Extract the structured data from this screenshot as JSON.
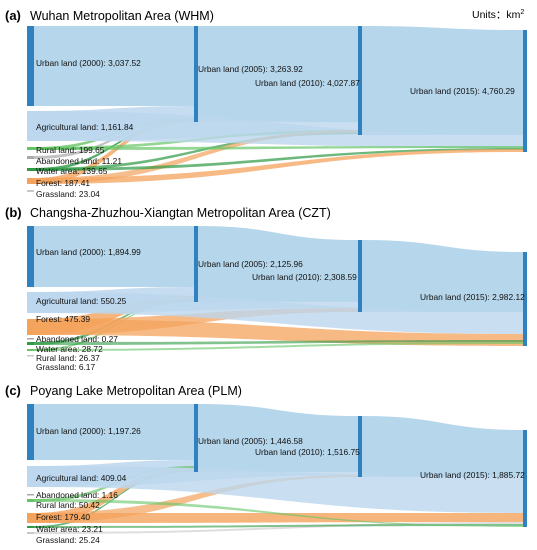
{
  "units": {
    "text": "Units：km",
    "superscript": "2"
  },
  "colors": {
    "urban": "#2f82bf",
    "urban_flow": "#a9cfe8",
    "agricultural": "#bcd7ee",
    "rural": "#66c466",
    "abandoned": "#a8a8a8",
    "water": "#2e9a45",
    "forest": "#f4a35c",
    "grassland": "#c8c8c8"
  },
  "panels": [
    {
      "letter": "(a)",
      "title": "Wuhan Metropolitan Area (WHM)",
      "nodes": [
        {
          "label": "Urban land (2000): 3,037.52",
          "kind": "urban",
          "stage": 0
        },
        {
          "label": "Agricultural land: 1,161.84",
          "kind": "agricultural",
          "stage": 0
        },
        {
          "label": "Rural land: 199.65",
          "kind": "rural",
          "stage": 0
        },
        {
          "label": "Abandoned land: 11.21",
          "kind": "abandoned",
          "stage": 0
        },
        {
          "label": "Water area: 139.65",
          "kind": "water",
          "stage": 0
        },
        {
          "label": "Forest: 187.41",
          "kind": "forest",
          "stage": 0
        },
        {
          "label": "Grassland: 23.04",
          "kind": "grassland",
          "stage": 0
        },
        {
          "label": "Urban land (2005): 3,263.92",
          "kind": "urban",
          "stage": 1
        },
        {
          "label": "Urban land (2010): 4,027.87",
          "kind": "urban",
          "stage": 2
        },
        {
          "label": "Urban land (2015): 4,760.29",
          "kind": "urban",
          "stage": 3
        }
      ]
    },
    {
      "letter": "(b)",
      "title": "Changsha-Zhuzhou-Xiangtan Metropolitan Area (CZT)",
      "nodes": [
        {
          "label": "Urban land (2000): 1,894.99",
          "kind": "urban",
          "stage": 0
        },
        {
          "label": "Agricultural land: 550.25",
          "kind": "agricultural",
          "stage": 0
        },
        {
          "label": "Forest: 475.39",
          "kind": "forest",
          "stage": 0
        },
        {
          "label": "Abandoned land: 0.27",
          "kind": "abandoned",
          "stage": 0
        },
        {
          "label": "Water area: 28.72",
          "kind": "water",
          "stage": 0
        },
        {
          "label": "Rural land: 26.37",
          "kind": "rural",
          "stage": 0
        },
        {
          "label": "Grassland: 6.17",
          "kind": "grassland",
          "stage": 0
        },
        {
          "label": "Urban land (2005): 2,125.96",
          "kind": "urban",
          "stage": 1
        },
        {
          "label": "Urban land (2010): 2,308.59",
          "kind": "urban",
          "stage": 2
        },
        {
          "label": "Urban land (2015): 2,982.12",
          "kind": "urban",
          "stage": 3
        }
      ]
    },
    {
      "letter": "(c)",
      "title": "Poyang Lake Metropolitan Area (PLM)",
      "nodes": [
        {
          "label": "Urban land (2000): 1,197.26",
          "kind": "urban",
          "stage": 0
        },
        {
          "label": "Agricultural land: 409.04",
          "kind": "agricultural",
          "stage": 0
        },
        {
          "label": "Abandoned land: 1.16",
          "kind": "abandoned",
          "stage": 0
        },
        {
          "label": "Rural land: 50.42",
          "kind": "rural",
          "stage": 0
        },
        {
          "label": "Forest: 179.40",
          "kind": "forest",
          "stage": 0
        },
        {
          "label": "Water area: 23.21",
          "kind": "water",
          "stage": 0
        },
        {
          "label": "Grassland: 25.24",
          "kind": "grassland",
          "stage": 0
        },
        {
          "label": "Urban land (2005): 1,446.58",
          "kind": "urban",
          "stage": 1
        },
        {
          "label": "Urban land (2010): 1,516.75",
          "kind": "urban",
          "stage": 2
        },
        {
          "label": "Urban land (2015): 1,885.72",
          "kind": "urban",
          "stage": 3
        }
      ]
    }
  ]
}
